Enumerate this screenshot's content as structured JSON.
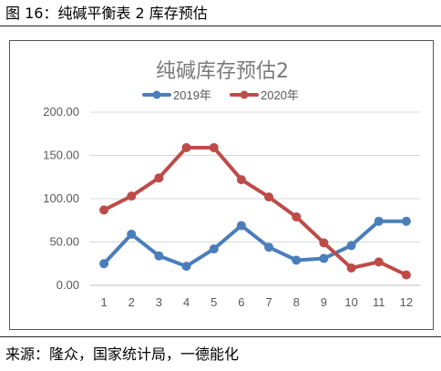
{
  "caption": "图 16：纯碱平衡表 2 库存预估",
  "source": "来源：隆众，国家统计局，一德能化",
  "chart_data": {
    "type": "line",
    "title": "纯碱库存预估2",
    "xlabel": "",
    "ylabel": "",
    "categories": [
      "1",
      "2",
      "3",
      "4",
      "5",
      "6",
      "7",
      "8",
      "9",
      "10",
      "11",
      "12"
    ],
    "ylim": [
      0,
      200
    ],
    "yticks": [
      "0.00",
      "50.00",
      "100.00",
      "150.00",
      "200.00"
    ],
    "grid": true,
    "legend": "top",
    "series": [
      {
        "name": "2019年",
        "color": "#4a7ebb",
        "values": [
          25,
          59,
          34,
          22,
          42,
          69,
          44,
          29,
          31,
          46,
          74,
          74
        ]
      },
      {
        "name": "2020年",
        "color": "#be4b48",
        "values": [
          87,
          103,
          124,
          159,
          159,
          122,
          102,
          79,
          49,
          20,
          27,
          12
        ]
      }
    ]
  }
}
